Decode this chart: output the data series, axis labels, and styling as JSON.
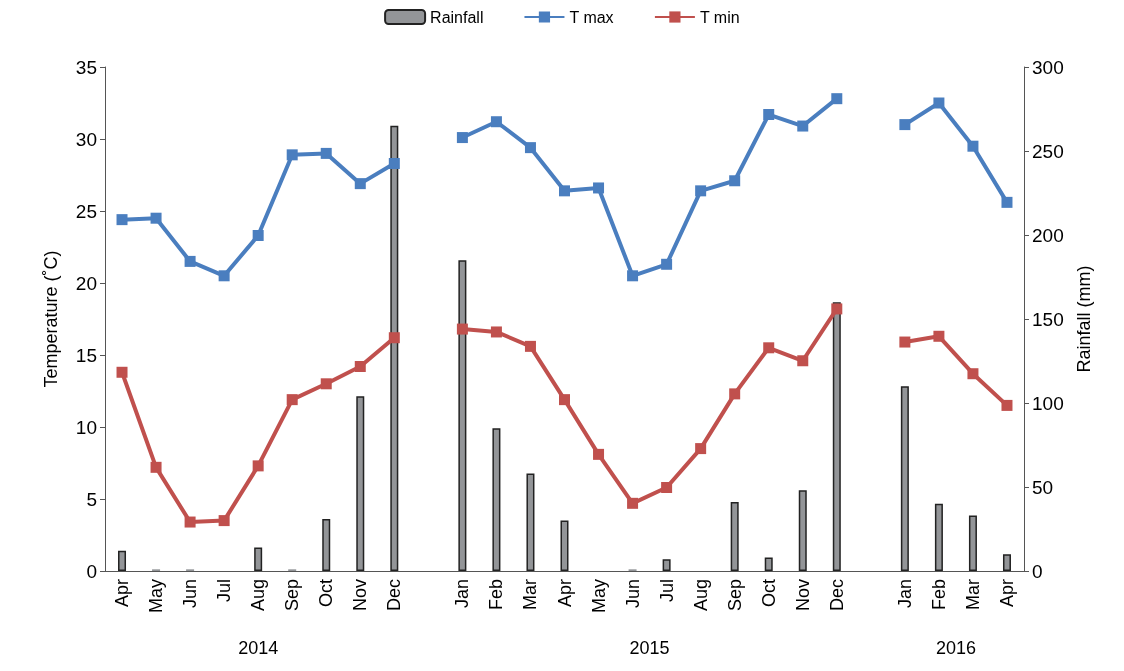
{
  "chart_data": {
    "type": "line",
    "xlabel": null,
    "ylabel": "Temperature (˚C)",
    "y2label": "Rainfall (mm)",
    "categories": [
      "Apr",
      "May",
      "Jun",
      "Jul",
      "Aug",
      "Sep",
      "Oct",
      "Nov",
      "Dec",
      null,
      "Jan",
      "Feb",
      "Mar",
      "Apr",
      "May",
      "Jun",
      "Jul",
      "Aug",
      "Sep",
      "Oct",
      "Nov",
      "Dec",
      null,
      "Jan",
      "Feb",
      "Mar",
      "Apr"
    ],
    "series": [
      {
        "name": "Rainfall",
        "type": "bar",
        "axis": "y2",
        "color": "#939598",
        "values": [
          12,
          1,
          1,
          0,
          14,
          1,
          31,
          104,
          265,
          null,
          185,
          85,
          58,
          30,
          0,
          1,
          7,
          0,
          41,
          8,
          48,
          160,
          null,
          110,
          40,
          33,
          10
        ]
      },
      {
        "name": "T max",
        "color": "#4a7ebf",
        "values": [
          24.4,
          24.5,
          21.5,
          20.5,
          23.3,
          28.9,
          29.0,
          26.9,
          28.3,
          null,
          30.1,
          31.2,
          29.4,
          26.4,
          26.6,
          20.5,
          21.3,
          26.4,
          27.1,
          31.7,
          30.9,
          32.8,
          null,
          31.0,
          32.5,
          29.5,
          25.6
        ]
      },
      {
        "name": "T min",
        "color": "#c0504d",
        "values": [
          13.8,
          7.2,
          3.4,
          3.5,
          7.3,
          11.9,
          13.0,
          14.2,
          16.2,
          null,
          16.8,
          16.6,
          15.6,
          11.9,
          8.1,
          4.7,
          5.8,
          8.5,
          12.3,
          15.5,
          14.6,
          18.2,
          null,
          15.9,
          16.3,
          13.7,
          11.5
        ]
      }
    ],
    "ylim": [
      0,
      35
    ],
    "yticks": [
      0,
      5,
      10,
      15,
      20,
      25,
      30,
      35
    ],
    "y2lim": [
      0,
      300
    ],
    "y2ticks": [
      0,
      50,
      100,
      150,
      200,
      250,
      300
    ],
    "annotations": [
      "2014",
      "2015",
      "2016"
    ],
    "legend": "top",
    "grid": false,
    "marker": "square",
    "line_style": "solid"
  }
}
